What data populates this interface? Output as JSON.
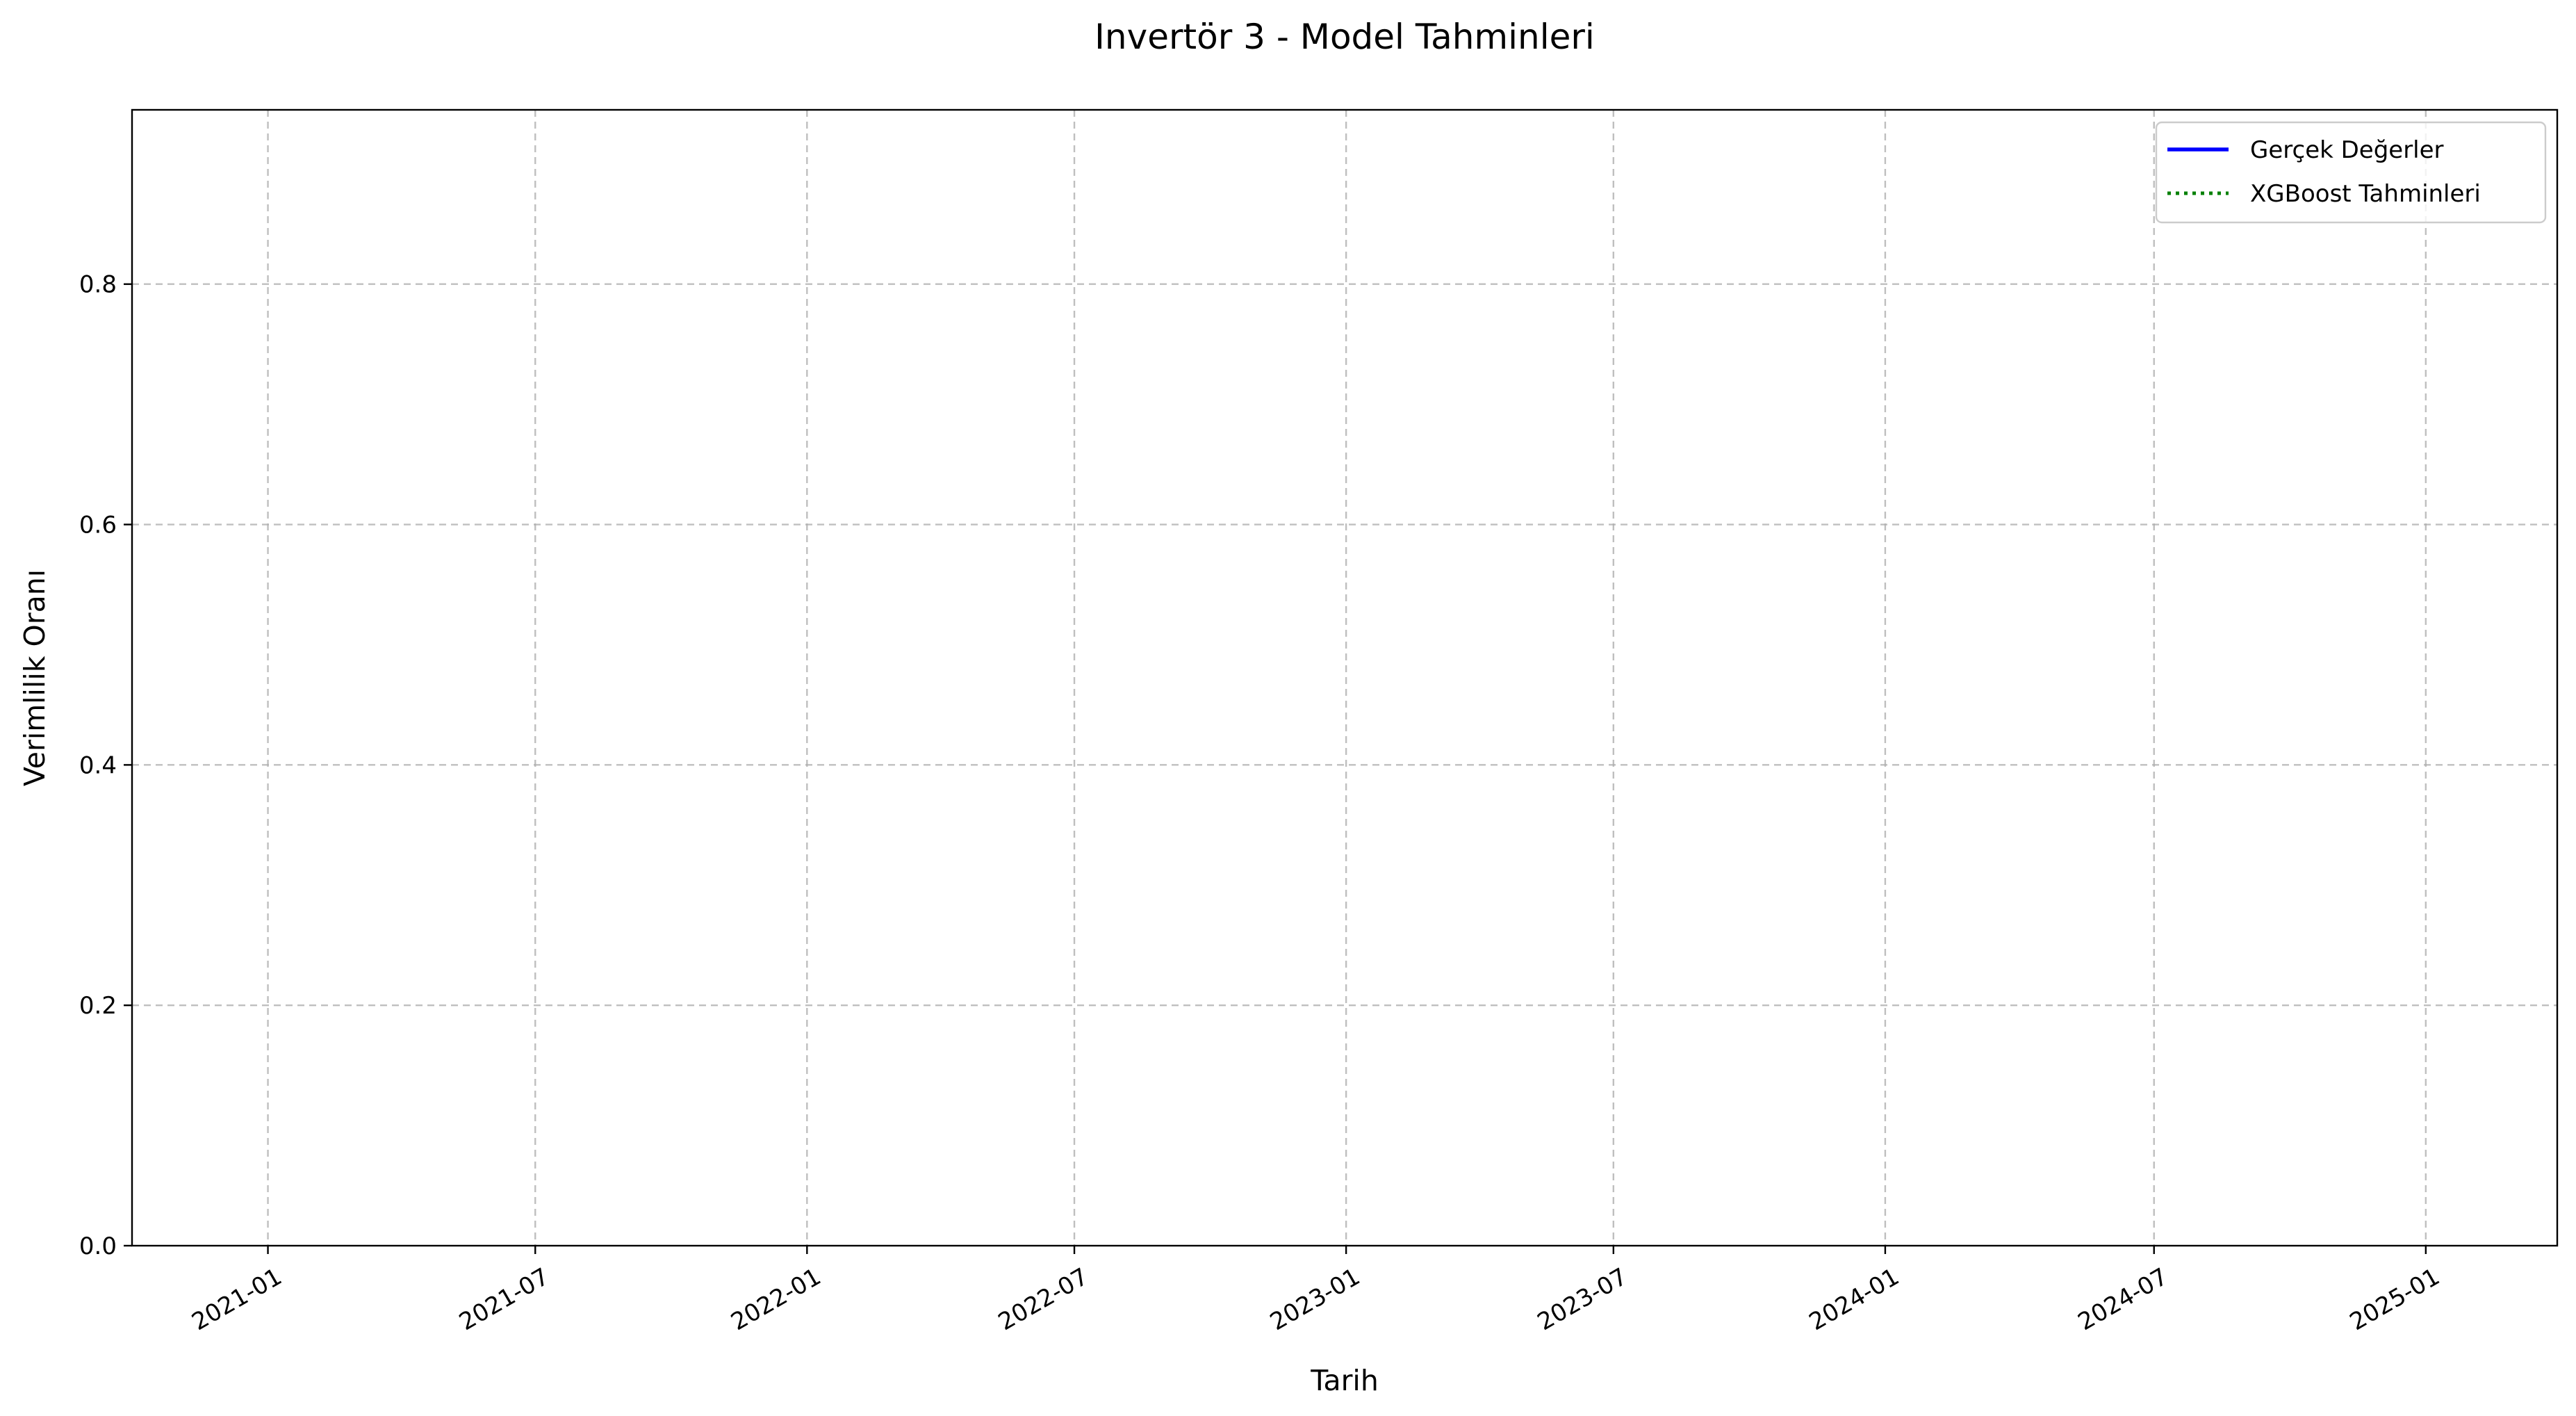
{
  "chart_data": {
    "type": "line",
    "title": "Invertör 3 - Model Tahminleri",
    "xlabel": "Tarih",
    "ylabel": "Verimlilik Oranı",
    "x_type": "date",
    "xlim": [
      "2020-10-01",
      "2025-03-31"
    ],
    "ylim": [
      0.0,
      0.945
    ],
    "x_ticks": [
      {
        "date": "2021-01-01",
        "label": "2021-01"
      },
      {
        "date": "2021-07-01",
        "label": "2021-07"
      },
      {
        "date": "2022-01-01",
        "label": "2022-01"
      },
      {
        "date": "2022-07-01",
        "label": "2022-07"
      },
      {
        "date": "2023-01-01",
        "label": "2023-01"
      },
      {
        "date": "2023-07-01",
        "label": "2023-07"
      },
      {
        "date": "2024-01-01",
        "label": "2024-01"
      },
      {
        "date": "2024-07-01",
        "label": "2024-07"
      },
      {
        "date": "2025-01-01",
        "label": "2025-01"
      }
    ],
    "y_ticks": [
      {
        "value": 0.0,
        "label": "0.0"
      },
      {
        "value": 0.2,
        "label": "0.2"
      },
      {
        "value": 0.4,
        "label": "0.4"
      },
      {
        "value": 0.6,
        "label": "0.6"
      },
      {
        "value": 0.8,
        "label": "0.8"
      }
    ],
    "grid": true,
    "legend_position": "top-right",
    "series": [
      {
        "name": "Gerçek Değerler",
        "color": "#0000ff",
        "line_style": "solid",
        "points": []
      },
      {
        "name": "XGBoost Tahminleri",
        "color": "#008000",
        "line_style": "dotted",
        "points": []
      }
    ]
  }
}
